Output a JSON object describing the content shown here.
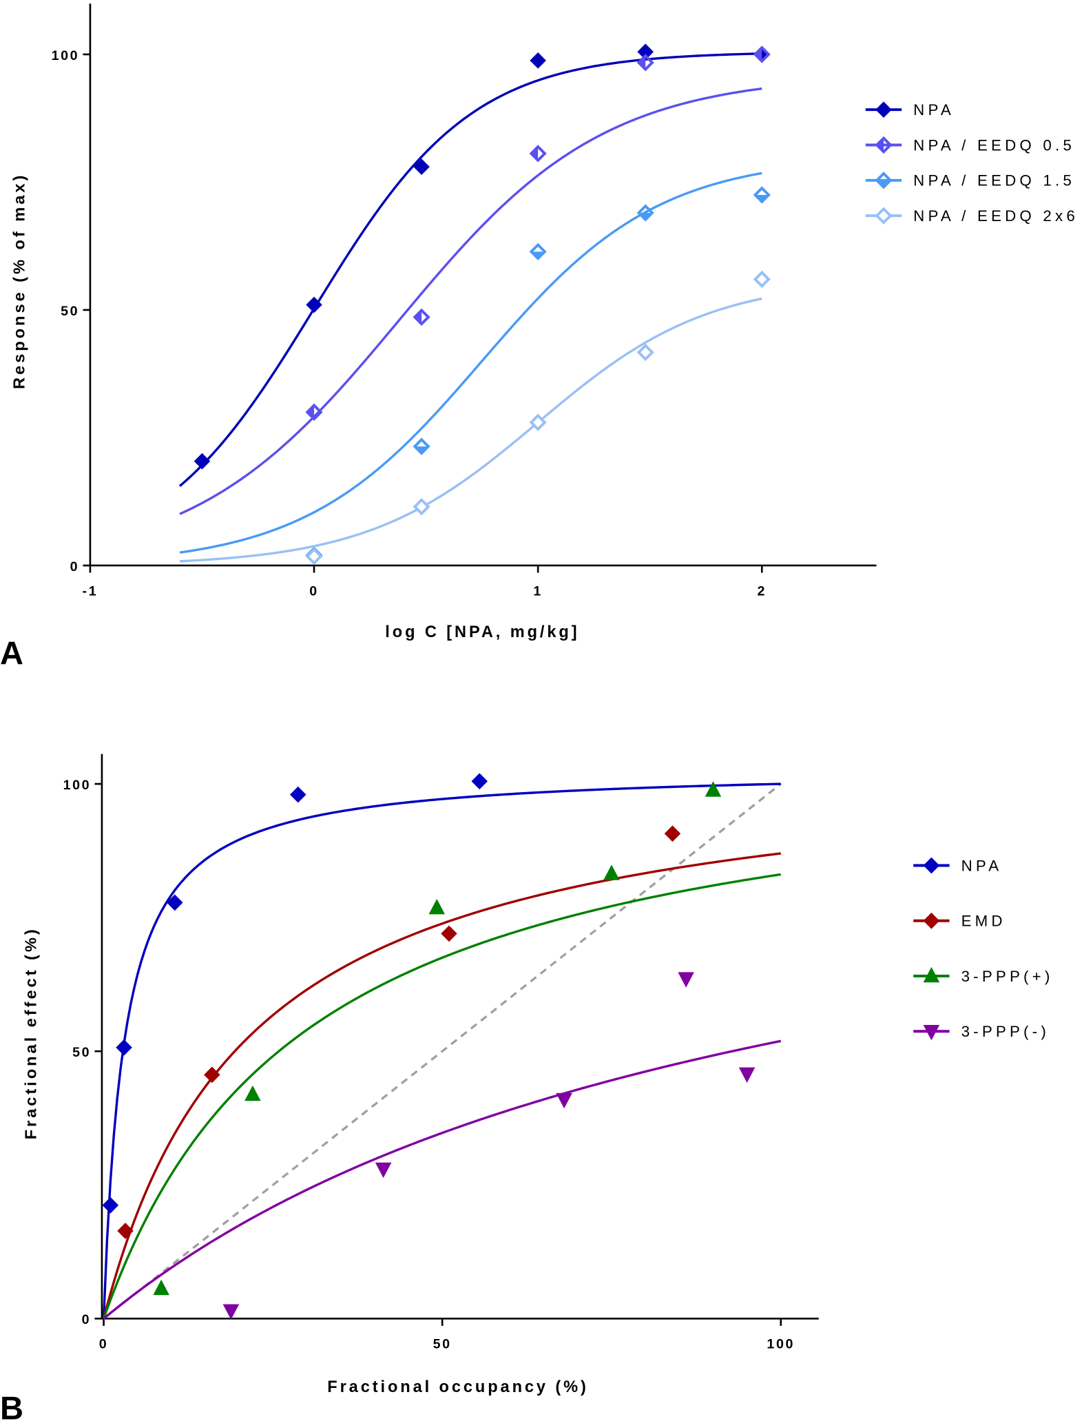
{
  "chart_data": [
    {
      "type": "scatter",
      "panel_label": "A",
      "title": "",
      "xlabel": "log C [NPA, mg/kg]",
      "ylabel": "Response (% of max)",
      "xlim": [
        -1,
        2.5
      ],
      "ylim": [
        0,
        110
      ],
      "xticks": [
        -1,
        0,
        1,
        2
      ],
      "xtick_labels": [
        "-1",
        "0",
        "1",
        "2"
      ],
      "yticks": [
        0,
        50,
        100
      ],
      "ytick_labels": [
        "0",
        "50",
        "100"
      ],
      "grid": false,
      "legend_position": "right",
      "curve_model": "sigmoidal dose-response",
      "series": [
        {
          "name": "NPA",
          "color": "#0000b8",
          "marker": "diamond-filled",
          "x": [
            -0.5,
            0,
            0.48,
            1,
            1.48,
            2
          ],
          "y": [
            20.4,
            51,
            78,
            98.8,
            100.5,
            100
          ],
          "fit": {
            "top": 100.5,
            "logEC50": 0.0,
            "hill": 1.23,
            "xrange": [
              -0.6,
              2
            ]
          }
        },
        {
          "name": "NPA / EEDQ 0.5",
          "color": "#5a50f0",
          "marker": "diamond-left-half",
          "x": [
            0,
            0.48,
            1,
            1.48,
            2
          ],
          "y": [
            30,
            48.6,
            80.6,
            98.4,
            100
          ],
          "fit": {
            "top": 96,
            "logEC50": 0.38,
            "hill": 0.95,
            "xrange": [
              -0.6,
              2
            ]
          }
        },
        {
          "name": "NPA / EEDQ 1.5",
          "color": "#4a9af5",
          "marker": "diamond-bottom-half",
          "x": [
            0,
            0.48,
            1,
            1.48,
            2
          ],
          "y": [
            2,
            23.3,
            61.4,
            69,
            72.5
          ],
          "fit": {
            "top": 80,
            "logEC50": 0.75,
            "hill": 1.1,
            "xrange": [
              -0.6,
              2
            ]
          }
        },
        {
          "name": "NPA / EEDQ 2x6",
          "color": "#99c0f5",
          "marker": "diamond-open",
          "x": [
            0,
            0.48,
            1,
            1.48,
            2
          ],
          "y": [
            1.8,
            11.5,
            28,
            41.7,
            56
          ],
          "fit": {
            "top": 56,
            "logEC50": 1.0,
            "hill": 1.14,
            "xrange": [
              -0.6,
              2
            ]
          }
        }
      ]
    },
    {
      "type": "scatter",
      "panel_label": "B",
      "title": "",
      "xlabel": "Fractional occupancy (%)",
      "ylabel": "Fractional effect (%)",
      "xlim": [
        0,
        105
      ],
      "ylim": [
        0,
        105
      ],
      "xticks": [
        0,
        50,
        100
      ],
      "xtick_labels": [
        "0",
        "50",
        "100"
      ],
      "yticks": [
        0,
        50,
        100
      ],
      "ytick_labels": [
        "0",
        "50",
        "100"
      ],
      "grid": false,
      "legend_position": "right",
      "reference_line": {
        "type": "identity",
        "style": "dashed",
        "color": "#a0a0a0"
      },
      "curve_model": "hyperbolic E = Emax*x/(K+x)",
      "series": [
        {
          "name": "NPA",
          "color": "#0000c0",
          "marker": "diamond",
          "x": [
            1,
            3,
            10.5,
            28.7,
            55.5
          ],
          "y": [
            21.2,
            50.7,
            77.8,
            98,
            100.5
          ],
          "fit": {
            "emax": 103,
            "k": 3,
            "xrange": [
              0,
              100
            ]
          }
        },
        {
          "name": "EMD",
          "color": "#a00000",
          "marker": "diamond",
          "x": [
            3.2,
            16,
            51,
            84
          ],
          "y": [
            16.4,
            45.6,
            72,
            90.7
          ],
          "fit": {
            "emax": 105.8,
            "k": 21.6,
            "xrange": [
              0,
              100
            ]
          }
        },
        {
          "name": "3-PPP(+)",
          "color": "#008000",
          "marker": "triangle-up",
          "x": [
            8.5,
            22,
            49.2,
            75,
            90
          ],
          "y": [
            5.6,
            41.9,
            76.8,
            83.2,
            98.8
          ],
          "fit": {
            "emax": 108,
            "k": 30,
            "xrange": [
              0,
              100
            ]
          }
        },
        {
          "name": "3-PPP(-)",
          "color": "#8000a0",
          "marker": "triangle-down",
          "x": [
            18.8,
            41.3,
            68,
            86,
            95
          ],
          "y": [
            1.5,
            28,
            41,
            63.6,
            45.8
          ],
          "fit": {
            "emax": 102.8,
            "k": 98,
            "xrange": [
              0,
              100
            ]
          }
        }
      ]
    }
  ]
}
